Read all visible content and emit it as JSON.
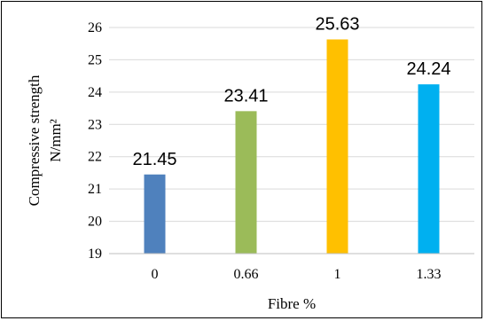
{
  "chart_data": {
    "type": "bar",
    "categories": [
      "0",
      "0.66",
      "1",
      "1.33"
    ],
    "values": [
      21.45,
      23.41,
      25.63,
      24.24
    ],
    "data_labels": [
      "21.45",
      "23.41",
      "25.63",
      "24.24"
    ],
    "colors": [
      "#4F81BD",
      "#9BBB59",
      "#FFC000",
      "#00B0F0"
    ],
    "title": "",
    "xlabel": "Fibre %",
    "ylabel_line1": "Compressive strength",
    "ylabel_line2": "N/mm²",
    "ylim": [
      19,
      26
    ],
    "yticks": [
      "19",
      "20",
      "21",
      "22",
      "23",
      "24",
      "25",
      "26"
    ],
    "grid": true,
    "grid_color": "#D9D9D9",
    "legend": "none"
  }
}
